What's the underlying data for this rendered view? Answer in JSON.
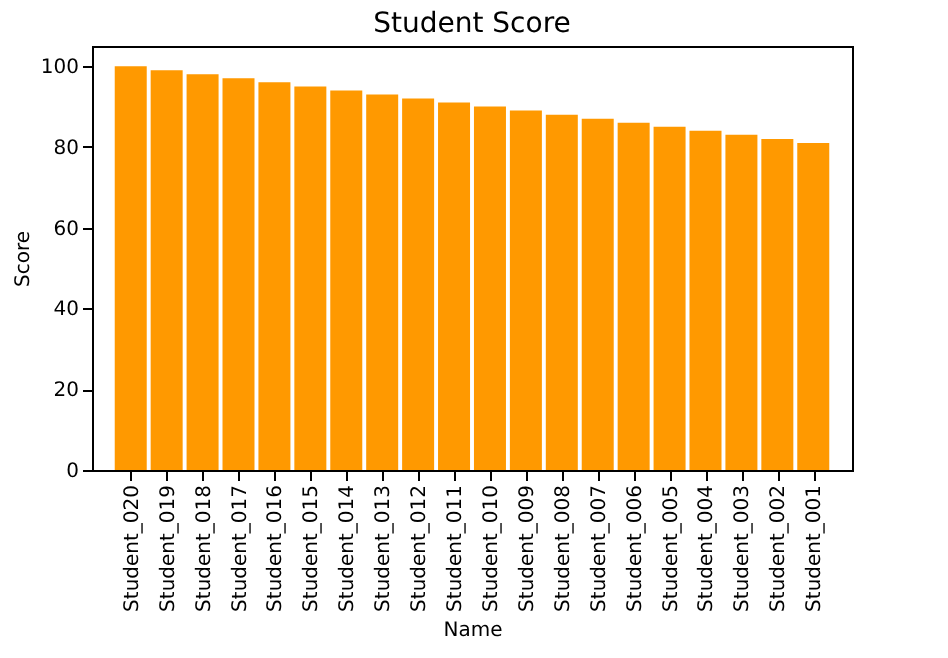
{
  "chart_data": {
    "type": "bar",
    "title": "Student Score",
    "xlabel": "Name",
    "ylabel": "Score",
    "categories": [
      "Student_020",
      "Student_019",
      "Student_018",
      "Student_017",
      "Student_016",
      "Student_015",
      "Student_014",
      "Student_013",
      "Student_012",
      "Student_011",
      "Student_010",
      "Student_009",
      "Student_008",
      "Student_007",
      "Student_006",
      "Student_005",
      "Student_004",
      "Student_003",
      "Student_002",
      "Student_001"
    ],
    "values": [
      100,
      99,
      98,
      97,
      96,
      95,
      94,
      93,
      92,
      91,
      90,
      89,
      88,
      87,
      86,
      85,
      84,
      83,
      82,
      81
    ],
    "color": "#ff9900",
    "ylim": [
      0,
      105
    ],
    "yticks": [
      0,
      20,
      40,
      60,
      80,
      100
    ],
    "grid": false
  }
}
